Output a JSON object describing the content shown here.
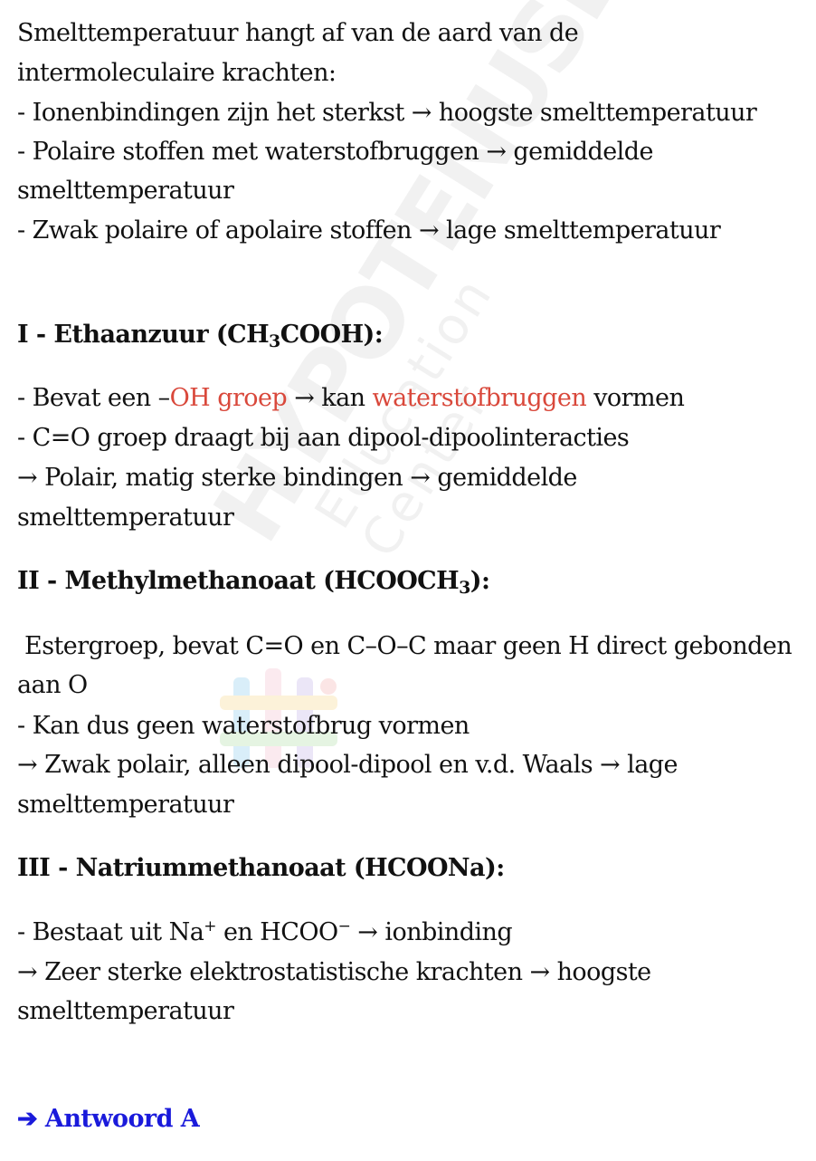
{
  "intro": {
    "line1": "Smelttemperatuur hangt af van de aard van de",
    "line2": "intermoleculaire krachten:",
    "line3": "- Ionenbindingen zijn het sterkst → hoogste smelttemperatuur",
    "line4": "- Polaire stoffen met waterstofbruggen → gemiddelde",
    "line5": "smelttemperatuur",
    "line6": "- Zwak polaire of apolaire stoffen → lage smelttemperatuur"
  },
  "section1": {
    "heading_a": "I - Ethaanzuur (CH",
    "heading_sub": "3",
    "heading_b": "COOH):",
    "l1_a": "- Bevat een –",
    "l1_red1": "OH groep",
    "l1_b": " → kan ",
    "l1_red2": "waterstofbruggen",
    "l1_c": " vormen",
    "l2": "- C=O groep draagt bij aan dipool-dipoolinteracties",
    "l3": "→ Polair, matig sterke bindingen → gemiddelde",
    "l4": "smelttemperatuur"
  },
  "section2": {
    "heading_a": "II - Methylmethanoaat (HCOOCH",
    "heading_sub": "3",
    "heading_b": "):",
    "l1": " Estergroep, bevat C=O en C–O–C maar geen H direct gebonden",
    "l2": "aan O",
    "l3": "- Kan dus geen waterstofbrug vormen",
    "l4": "→ Zwak polair, alleen dipool-dipool en v.d. Waals → lage",
    "l5": "smelttemperatuur"
  },
  "section3": {
    "heading": "III - Natriummethanoaat (HCOONa):",
    "l1_a": "- Bestaat uit Na",
    "l1_sup1": "+",
    "l1_b": " en HCOO",
    "l1_sup2": "−",
    "l1_c": " → ionbinding",
    "l2": "→ Zeer sterke elektrostatistische krachten → hoogste",
    "l3": "smelttemperatuur"
  },
  "answer": {
    "text": "➔ Antwoord A"
  },
  "watermark": {
    "brand": "HYPOTENUSE",
    "tagline": "Education Center"
  },
  "colors": {
    "accent_red": "#d9483b",
    "answer_blue": "#1a1adb"
  }
}
